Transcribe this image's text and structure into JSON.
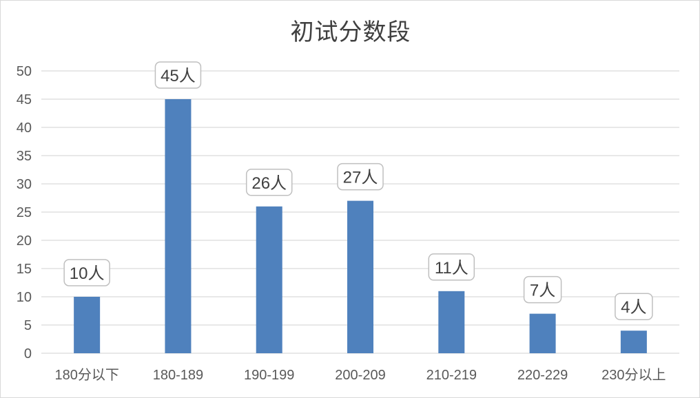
{
  "chart_data": {
    "type": "bar",
    "title": "初试分数段",
    "categories": [
      "180分以下",
      "180-189",
      "190-199",
      "200-209",
      "210-219",
      "220-229",
      "230分以上"
    ],
    "values": [
      10,
      45,
      26,
      27,
      11,
      7,
      4
    ],
    "data_labels": [
      "10人",
      "45人",
      "26人",
      "27人",
      "11人",
      "7人",
      "4人"
    ],
    "yticks": [
      "0",
      "5",
      "10",
      "15",
      "20",
      "25",
      "30",
      "35",
      "40",
      "45",
      "50"
    ],
    "ylim": [
      0,
      50
    ],
    "grid": true,
    "legend": "none",
    "bar_color": "#4f81bd",
    "grid_color": "#d9d9d9"
  }
}
